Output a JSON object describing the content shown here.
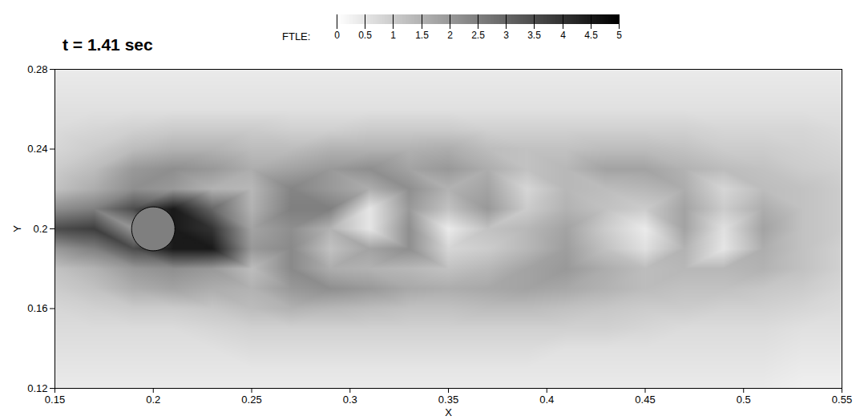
{
  "chart_data": {
    "type": "heatmap",
    "title": "t = 1.41 sec",
    "x_label": "X",
    "y_label": "Y",
    "xlim": [
      0.15,
      0.55
    ],
    "xticks": [
      0.15,
      0.2,
      0.25,
      0.3,
      0.35,
      0.4,
      0.45,
      0.5,
      0.55
    ],
    "ylim": [
      0.12,
      0.28
    ],
    "yticks": [
      0.12,
      0.16,
      0.2,
      0.24,
      0.28
    ],
    "colorbar": {
      "label": "FTLE:",
      "range": [
        0,
        5
      ],
      "ticks": [
        0,
        0.5,
        1,
        1.5,
        2,
        2.5,
        3,
        3.5,
        4,
        4.5,
        5
      ],
      "colors": [
        "#ffffff",
        "#000000"
      ]
    },
    "cylinder": {
      "x": 0.2,
      "y": 0.2,
      "r": 0.011,
      "color": "#7f7f7f"
    },
    "field": {
      "x": [
        0.15,
        0.17,
        0.19,
        0.21,
        0.23,
        0.25,
        0.27,
        0.29,
        0.31,
        0.33,
        0.35,
        0.37,
        0.39,
        0.41,
        0.43,
        0.45,
        0.47,
        0.49,
        0.51,
        0.53,
        0.55
      ],
      "y": [
        0.12,
        0.13,
        0.14,
        0.15,
        0.16,
        0.17,
        0.18,
        0.19,
        0.2,
        0.21,
        0.22,
        0.23,
        0.24,
        0.25,
        0.26,
        0.27,
        0.28
      ],
      "values": [
        [
          0.4,
          0.4,
          0.4,
          0.4,
          0.4,
          0.4,
          0.4,
          0.4,
          0.4,
          0.4,
          0.4,
          0.4,
          0.4,
          0.4,
          0.4,
          0.4,
          0.4,
          0.4,
          0.4,
          0.3,
          0.3
        ],
        [
          0.5,
          0.5,
          0.5,
          0.5,
          0.5,
          0.5,
          0.5,
          0.5,
          0.5,
          0.5,
          0.5,
          0.5,
          0.5,
          0.5,
          0.5,
          0.5,
          0.5,
          0.5,
          0.5,
          0.4,
          0.4
        ],
        [
          0.6,
          0.6,
          0.6,
          0.6,
          0.6,
          0.7,
          0.7,
          0.7,
          0.7,
          0.7,
          0.7,
          0.7,
          0.7,
          0.6,
          0.6,
          0.6,
          0.6,
          0.6,
          0.6,
          0.5,
          0.5
        ],
        [
          0.7,
          0.7,
          0.7,
          0.7,
          0.8,
          0.9,
          0.9,
          0.9,
          0.9,
          0.9,
          0.9,
          0.9,
          0.9,
          0.9,
          0.9,
          0.8,
          0.7,
          0.7,
          0.7,
          0.6,
          0.6
        ],
        [
          0.8,
          0.9,
          1.0,
          1.0,
          1.1,
          1.3,
          1.5,
          1.4,
          1.3,
          1.2,
          1.2,
          1.3,
          1.3,
          1.2,
          1.1,
          1.0,
          1.0,
          0.9,
          0.9,
          0.8,
          0.7
        ],
        [
          1.0,
          1.2,
          1.6,
          1.8,
          1.6,
          1.5,
          2.0,
          2.2,
          2.0,
          1.7,
          1.6,
          1.7,
          1.8,
          1.7,
          1.5,
          1.3,
          1.2,
          1.2,
          1.1,
          1.0,
          0.8
        ],
        [
          1.2,
          1.5,
          2.0,
          2.2,
          2.0,
          1.3,
          2.3,
          1.6,
          1.5,
          1.4,
          1.2,
          1.4,
          1.8,
          2.0,
          1.6,
          1.3,
          1.4,
          1.4,
          1.5,
          1.2,
          0.9
        ],
        [
          2.0,
          2.5,
          3.5,
          4.5,
          4.5,
          2.0,
          2.3,
          1.2,
          1.8,
          2.2,
          0.8,
          1.0,
          1.4,
          1.9,
          1.2,
          0.6,
          1.5,
          0.5,
          1.6,
          1.2,
          0.9
        ],
        [
          3.5,
          3.8,
          2.0,
          4.5,
          4.0,
          1.8,
          2.2,
          1.5,
          0.5,
          2.2,
          0.4,
          1.2,
          1.4,
          1.8,
          1.0,
          0.4,
          1.8,
          0.6,
          1.8,
          1.2,
          1.0
        ],
        [
          2.2,
          2.5,
          3.5,
          4.5,
          3.0,
          1.5,
          2.5,
          2.5,
          0.5,
          2.0,
          1.2,
          2.0,
          1.0,
          1.5,
          1.2,
          1.0,
          1.8,
          1.0,
          1.6,
          1.2,
          1.0
        ],
        [
          1.2,
          1.6,
          2.2,
          2.0,
          1.5,
          1.4,
          2.4,
          2.0,
          1.6,
          2.2,
          1.5,
          1.8,
          0.8,
          1.4,
          1.3,
          1.4,
          1.6,
          0.8,
          1.3,
          1.2,
          1.0
        ],
        [
          1.0,
          1.3,
          2.0,
          2.2,
          2.0,
          1.6,
          1.8,
          2.0,
          2.2,
          1.8,
          2.0,
          1.6,
          1.2,
          1.4,
          1.8,
          1.8,
          1.5,
          1.3,
          1.2,
          1.0,
          0.9
        ],
        [
          0.8,
          1.0,
          1.3,
          1.5,
          1.5,
          1.3,
          1.3,
          1.5,
          1.5,
          1.5,
          1.6,
          1.3,
          1.2,
          1.2,
          1.3,
          1.3,
          1.2,
          1.0,
          1.0,
          0.9,
          0.8
        ],
        [
          0.7,
          0.8,
          0.9,
          1.0,
          1.0,
          1.0,
          0.9,
          0.9,
          1.0,
          1.0,
          1.0,
          0.9,
          0.9,
          0.9,
          0.9,
          0.9,
          0.9,
          0.8,
          0.8,
          0.8,
          0.7
        ],
        [
          0.6,
          0.6,
          0.6,
          0.6,
          0.6,
          0.6,
          0.6,
          0.6,
          0.6,
          0.6,
          0.6,
          0.6,
          0.6,
          0.6,
          0.6,
          0.6,
          0.6,
          0.6,
          0.6,
          0.6,
          0.6
        ],
        [
          0.5,
          0.5,
          0.5,
          0.5,
          0.5,
          0.5,
          0.5,
          0.5,
          0.5,
          0.5,
          0.5,
          0.5,
          0.5,
          0.5,
          0.5,
          0.5,
          0.5,
          0.5,
          0.5,
          0.5,
          0.5
        ],
        [
          0.4,
          0.4,
          0.4,
          0.4,
          0.4,
          0.4,
          0.4,
          0.4,
          0.4,
          0.4,
          0.4,
          0.4,
          0.4,
          0.4,
          0.4,
          0.4,
          0.4,
          0.4,
          0.4,
          0.4,
          0.4
        ]
      ]
    }
  }
}
